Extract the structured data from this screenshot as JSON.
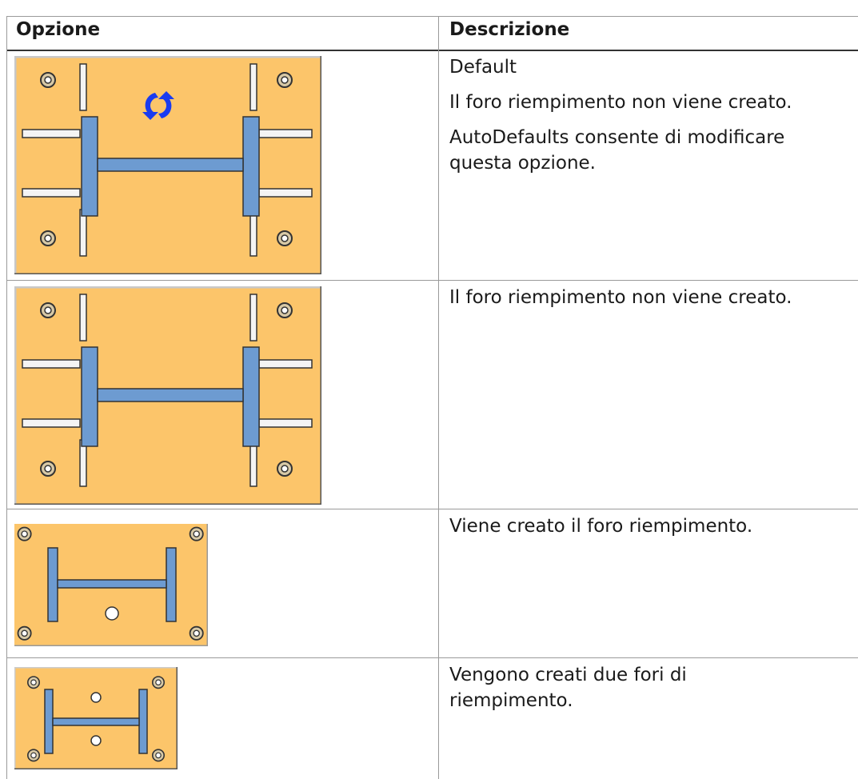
{
  "table": {
    "headers": [
      "Opzione",
      "Descrizione"
    ],
    "rows": [
      {
        "description": [
          "Default",
          "Il foro riempimento non viene creato.",
          "AutoDefaults consente di modificare questa opzione."
        ]
      },
      {
        "description": [
          "Il foro riempimento non viene creato."
        ]
      },
      {
        "description": [
          "Viene creato il foro riempimento."
        ]
      },
      {
        "description": [
          "Vengono creati due fori di riempimento."
        ]
      }
    ]
  }
}
